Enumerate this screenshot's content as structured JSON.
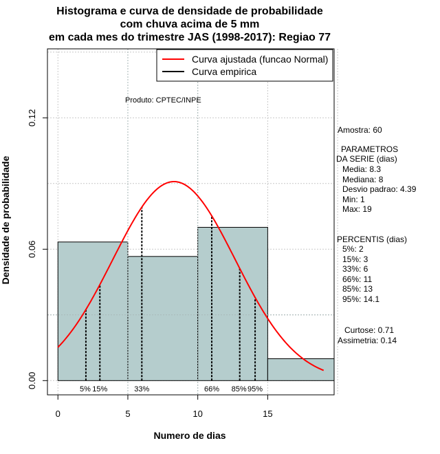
{
  "chart_data": {
    "type": "histogram",
    "title_lines": [
      "Histograma e curva de densidade de probabilidade",
      "com chuva acima de 5 mm",
      "em cada mes do trimestre JAS (1998-2017): Regiao 77"
    ],
    "xlabel": "Numero de dias",
    "ylabel": "Densidade de probabilidade",
    "xlim": [
      -0.75,
      19.75
    ],
    "ylim": [
      -0.0065,
      0.1515
    ],
    "xticks": [
      0,
      5,
      10,
      15
    ],
    "yticks": [
      0.0,
      0.06,
      0.12
    ],
    "ytick_labels": [
      "0.00",
      "0.06",
      "0.12"
    ],
    "bins": [
      {
        "start": 0,
        "end": 5,
        "density": 0.0633
      },
      {
        "start": 5,
        "end": 10,
        "density": 0.0567
      },
      {
        "start": 10,
        "end": 15,
        "density": 0.07
      },
      {
        "start": 15,
        "end": 20,
        "density": 0.01
      }
    ],
    "bar_color": "#b5cdcd",
    "normal_fit": {
      "mean": 8.3,
      "sd": 4.39,
      "x_from": 0,
      "x_to": 19,
      "color": "#ff0000"
    },
    "percentiles": [
      {
        "label": "5%",
        "value": 2
      },
      {
        "label": "15%",
        "value": 3
      },
      {
        "label": "33%",
        "value": 6
      },
      {
        "label": "66%",
        "value": 11
      },
      {
        "label": "85%",
        "value": 13
      },
      {
        "label": "95%",
        "value": 14.1
      }
    ],
    "legend": {
      "fitted": "Curva ajustada (funcao Normal)",
      "empirical": "Curva empirica",
      "position": "top-right"
    },
    "product_label": "Produto: CPTEC/INPE"
  },
  "stats": {
    "sample": "Amostra: 60",
    "params_header_1": "PARAMETROS",
    "params_header_2": "DA SERIE (dias)",
    "params": [
      "Media: 8.3",
      "Mediana: 8",
      "Desvio padrao: 4.39",
      "Min: 1",
      "Max: 19"
    ],
    "percentis_header": "PERCENTIS (dias)",
    "percentis": [
      "5%: 2",
      "15%: 3",
      "33%: 6",
      "66%: 11",
      "85%: 13",
      "95%: 14.1"
    ],
    "kurtosis": "Curtose: 0.71",
    "skewness": "Assimetria: 0.14"
  }
}
